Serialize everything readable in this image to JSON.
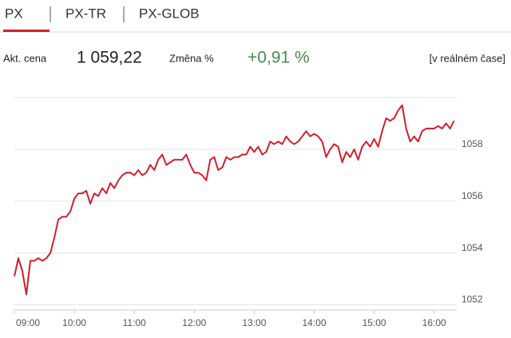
{
  "tabs": [
    "PX",
    "PX-TR",
    "PX-GLOB"
  ],
  "quote": {
    "price_label": "Akt. cena",
    "price": "1 059,22",
    "change_label": "Změna %",
    "change": "+0,91 %",
    "realtime": "[v reálném čase]"
  },
  "chart_data": {
    "type": "line",
    "color": "#d0202e",
    "grid": true,
    "xlim": [
      540,
      985
    ],
    "xticks": [
      {
        "value": 540,
        "label": "09:00"
      },
      {
        "value": 600,
        "label": "10:00"
      },
      {
        "value": 660,
        "label": "11:00"
      },
      {
        "value": 720,
        "label": "12:00"
      },
      {
        "value": 780,
        "label": "13:00"
      },
      {
        "value": 840,
        "label": "14:00"
      },
      {
        "value": 900,
        "label": "15:00"
      },
      {
        "value": 960,
        "label": "16:00"
      }
    ],
    "ylim": [
      1051.8,
      1060
    ],
    "yticks": [
      1052,
      1054,
      1056,
      1058
    ],
    "x": [
      540,
      544,
      548,
      552,
      556,
      560,
      564,
      568,
      572,
      576,
      580,
      584,
      588,
      592,
      596,
      600,
      604,
      608,
      612,
      616,
      620,
      624,
      628,
      632,
      636,
      640,
      644,
      648,
      652,
      656,
      660,
      664,
      668,
      672,
      676,
      680,
      684,
      688,
      692,
      696,
      700,
      704,
      708,
      712,
      716,
      720,
      724,
      728,
      732,
      736,
      740,
      744,
      748,
      752,
      756,
      760,
      764,
      768,
      772,
      776,
      780,
      784,
      788,
      792,
      796,
      800,
      804,
      808,
      812,
      816,
      820,
      824,
      828,
      832,
      836,
      840,
      844,
      848,
      852,
      856,
      860,
      864,
      868,
      872,
      876,
      880,
      884,
      888,
      892,
      896,
      900,
      904,
      908,
      912,
      916,
      920,
      924,
      928,
      932,
      936,
      940,
      944,
      948,
      952,
      956,
      960,
      964,
      968,
      972,
      976,
      980
    ],
    "values": [
      1053.1,
      1053.8,
      1053.3,
      1052.4,
      1053.7,
      1053.7,
      1053.8,
      1053.7,
      1053.8,
      1054.0,
      1054.6,
      1055.3,
      1055.4,
      1055.4,
      1055.6,
      1056.1,
      1056.3,
      1056.3,
      1056.4,
      1055.9,
      1056.3,
      1056.2,
      1056.5,
      1056.3,
      1056.7,
      1056.5,
      1056.8,
      1057.0,
      1057.1,
      1057.1,
      1057.0,
      1057.2,
      1057.0,
      1057.1,
      1057.4,
      1057.2,
      1057.6,
      1057.8,
      1057.4,
      1057.5,
      1057.6,
      1057.6,
      1057.6,
      1057.8,
      1057.4,
      1057.1,
      1057.1,
      1057.0,
      1056.8,
      1057.6,
      1057.7,
      1057.2,
      1057.3,
      1057.7,
      1057.6,
      1057.7,
      1057.7,
      1057.8,
      1057.8,
      1058.1,
      1057.9,
      1058.1,
      1057.8,
      1057.9,
      1058.3,
      1058.2,
      1058.3,
      1058.2,
      1058.5,
      1058.3,
      1058.2,
      1058.3,
      1058.5,
      1058.7,
      1058.5,
      1058.6,
      1058.5,
      1058.3,
      1057.7,
      1058.0,
      1058.2,
      1058.1,
      1057.5,
      1057.9,
      1057.7,
      1058.0,
      1057.6,
      1058.1,
      1058.3,
      1058.1,
      1058.4,
      1058.1,
      1058.7,
      1059.2,
      1059.1,
      1059.2,
      1059.5,
      1059.7,
      1058.8,
      1058.3,
      1058.5,
      1058.3,
      1058.7,
      1058.8,
      1058.8,
      1058.8,
      1058.9,
      1058.8,
      1059.0,
      1058.8,
      1059.1
    ]
  }
}
